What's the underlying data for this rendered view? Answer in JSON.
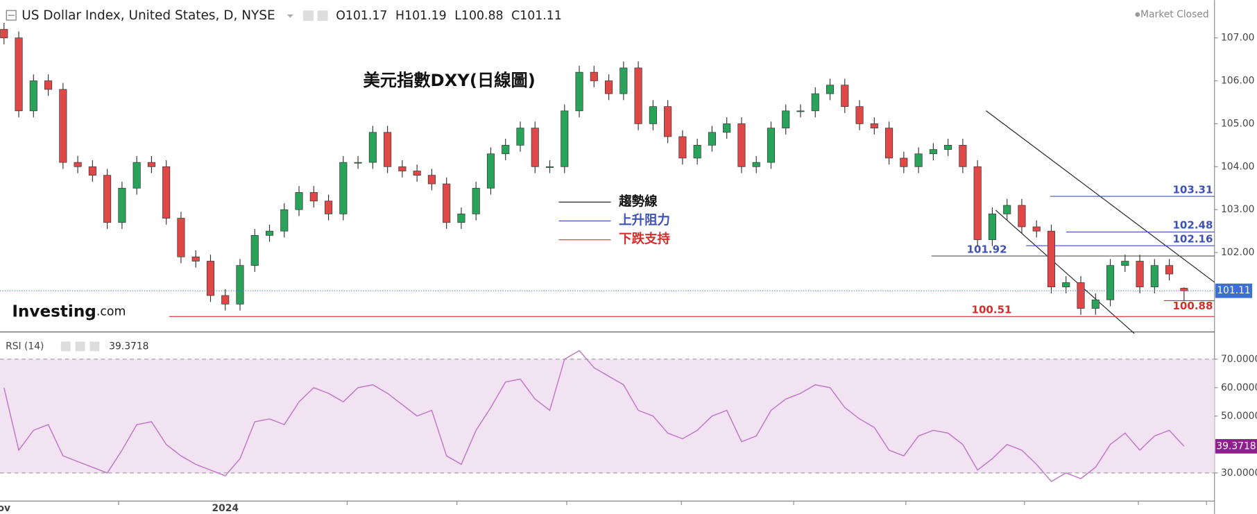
{
  "chart_data": [
    {
      "type": "candlestick",
      "title": "US Dollar Index, United States, D, NYSE",
      "ohlc_letters": [
        "O",
        "H",
        "L",
        "C"
      ],
      "status": "Market Closed",
      "logo": [
        "Investing",
        ".com"
      ],
      "annotation_title": "美元指數DXY(日線圖)",
      "annotation_legend": [
        {
          "label": "趨勢線",
          "color": "#111111"
        },
        {
          "label": "上升阻力",
          "color": "#3f51b5"
        },
        {
          "label": "下跌支持",
          "color": "#d32f2f"
        }
      ],
      "categories": [
        "ov",
        null,
        null,
        null,
        null,
        null,
        null,
        null,
        null,
        null,
        null,
        null,
        null,
        null,
        null,
        "2024",
        null,
        null,
        null,
        null,
        null,
        null,
        null,
        null,
        null,
        null,
        null,
        null,
        null,
        null,
        null,
        null,
        null,
        null,
        null,
        null,
        null,
        null,
        null,
        null,
        null,
        null,
        null,
        null,
        null,
        null,
        null,
        null,
        null,
        null,
        null,
        null,
        null,
        null,
        null,
        null,
        null,
        null,
        null,
        null,
        null,
        null,
        null,
        null,
        null,
        null,
        null,
        null,
        null,
        null,
        null,
        null,
        null,
        null,
        null,
        null,
        null,
        null,
        null,
        null,
        null
      ],
      "open": [
        107.2,
        107.0,
        105.3,
        106.0,
        105.8,
        104.1,
        104.0,
        103.8,
        102.7,
        103.5,
        104.1,
        104.0,
        102.8,
        101.9,
        101.8,
        101.0,
        100.8,
        101.7,
        102.4,
        102.5,
        103.0,
        103.4,
        103.2,
        102.9,
        104.1,
        104.1,
        104.8,
        104.0,
        103.9,
        103.8,
        103.6,
        102.7,
        102.9,
        103.5,
        104.3,
        104.5,
        104.9,
        104.0,
        104.0,
        105.3,
        106.2,
        106.0,
        105.7,
        106.3,
        105.0,
        105.4,
        104.7,
        104.2,
        104.5,
        104.8,
        105.0,
        104.0,
        104.1,
        104.9,
        105.3,
        105.3,
        105.7,
        105.9,
        105.4,
        105.0,
        104.9,
        104.2,
        104.0,
        104.3,
        104.4,
        104.5,
        104.0,
        102.3,
        102.9,
        103.1,
        102.6,
        102.5,
        101.2,
        101.3,
        100.7,
        100.9,
        101.7,
        101.8,
        101.2,
        101.7,
        101.17
      ],
      "high": [
        107.35,
        107.15,
        106.15,
        106.15,
        105.95,
        104.25,
        104.15,
        103.95,
        103.65,
        104.25,
        104.25,
        104.15,
        102.95,
        102.05,
        101.95,
        101.15,
        101.85,
        102.55,
        102.65,
        103.15,
        103.55,
        103.55,
        103.35,
        104.25,
        104.25,
        104.95,
        104.95,
        104.15,
        104.05,
        103.95,
        103.75,
        103.05,
        103.65,
        104.45,
        104.65,
        105.05,
        105.05,
        104.15,
        105.45,
        106.35,
        106.35,
        106.15,
        106.45,
        106.45,
        105.55,
        105.55,
        104.85,
        104.65,
        104.95,
        105.15,
        105.15,
        104.25,
        105.05,
        105.45,
        105.45,
        105.85,
        106.05,
        106.05,
        105.55,
        105.15,
        105.05,
        104.35,
        104.45,
        104.55,
        104.65,
        104.65,
        104.15,
        103.05,
        103.25,
        103.25,
        102.75,
        102.65,
        101.45,
        101.45,
        101.05,
        101.85,
        101.95,
        101.95,
        101.85,
        101.85,
        101.19
      ],
      "low": [
        106.85,
        105.15,
        105.15,
        105.65,
        103.95,
        103.85,
        103.65,
        102.55,
        102.55,
        103.35,
        103.85,
        102.65,
        101.75,
        101.65,
        100.85,
        100.65,
        100.65,
        101.55,
        102.25,
        102.35,
        102.85,
        103.05,
        102.75,
        102.75,
        103.95,
        103.95,
        103.85,
        103.75,
        103.65,
        103.45,
        102.55,
        102.55,
        102.75,
        103.35,
        104.15,
        104.35,
        103.85,
        103.85,
        103.85,
        105.15,
        105.85,
        105.55,
        105.55,
        104.85,
        104.85,
        104.55,
        104.05,
        104.05,
        104.35,
        104.65,
        103.85,
        103.85,
        103.95,
        104.75,
        105.15,
        105.15,
        105.55,
        105.25,
        104.85,
        104.75,
        104.05,
        103.85,
        103.85,
        104.15,
        104.25,
        103.85,
        102.15,
        102.15,
        102.75,
        102.45,
        102.35,
        101.05,
        101.05,
        100.55,
        100.55,
        100.75,
        101.55,
        101.05,
        101.05,
        101.35,
        100.88
      ],
      "close": [
        107.0,
        105.3,
        106.0,
        105.8,
        104.1,
        104.0,
        103.8,
        102.7,
        103.5,
        104.1,
        104.0,
        102.8,
        101.9,
        101.8,
        101.0,
        100.8,
        101.7,
        102.4,
        102.5,
        103.0,
        103.4,
        103.2,
        102.9,
        104.1,
        104.1,
        104.8,
        104.0,
        103.9,
        103.8,
        103.6,
        102.7,
        102.9,
        103.5,
        104.3,
        104.5,
        104.9,
        104.0,
        104.0,
        105.3,
        106.2,
        106.0,
        105.7,
        106.3,
        105.0,
        105.4,
        104.7,
        104.2,
        104.5,
        104.8,
        105.0,
        104.0,
        104.1,
        104.9,
        105.3,
        105.3,
        105.7,
        105.9,
        105.4,
        105.0,
        104.9,
        104.2,
        104.0,
        104.3,
        104.4,
        104.5,
        104.0,
        102.3,
        102.9,
        103.1,
        102.6,
        102.5,
        101.2,
        101.3,
        100.7,
        100.9,
        101.7,
        101.8,
        101.2,
        101.7,
        101.5,
        101.11
      ],
      "up_color": "#2aa35a",
      "down_color": "#e04848",
      "last_price_color": "#3d6fd1",
      "levels": [
        103.31,
        102.48,
        102.16,
        101.92,
        100.51,
        100.88
      ],
      "level_colors": [
        "#3f51b5",
        "#3f51b5",
        "#3f51b5",
        "#3f51b5",
        "#d32f2f",
        "#d32f2f"
      ],
      "ylim": [
        100.17,
        107.88
      ],
      "yticks": [
        {
          "value": 102,
          "label": "102.00"
        },
        {
          "value": 103,
          "label": "103.00"
        },
        {
          "value": 104,
          "label": "104.00"
        },
        {
          "value": 105,
          "label": "105.00"
        },
        {
          "value": 106,
          "label": "106.00"
        },
        {
          "value": 107,
          "label": "107.00"
        }
      ]
    },
    {
      "type": "line",
      "title": "RSI (14)",
      "series": [
        {
          "name": "RSI (14)",
          "color": "#c07ac8",
          "values": [
            60,
            38,
            45,
            47,
            36,
            34,
            32,
            30,
            38,
            47,
            48,
            40,
            36,
            33,
            31,
            29,
            35,
            48,
            49,
            47,
            55,
            60,
            58,
            55,
            60,
            61,
            58,
            54,
            50,
            52,
            36,
            33,
            45,
            53,
            62,
            63,
            56,
            52,
            70,
            73,
            67,
            64,
            61,
            52,
            50,
            44,
            42,
            45,
            50,
            52,
            41,
            43,
            52,
            56,
            58,
            61,
            60,
            53,
            49,
            46,
            38,
            36,
            43,
            45,
            44,
            40,
            31,
            35,
            40,
            38,
            33,
            27,
            30,
            28,
            32,
            40,
            44,
            38,
            43,
            45,
            39.3718
          ]
        }
      ],
      "band": [
        30,
        70
      ],
      "band_color": "#f1e3f1",
      "tag_color": "#8e1f8e",
      "ylim": [
        20.1,
        79.3
      ],
      "yticks": [
        {
          "value": 30,
          "label": "30.0000"
        },
        {
          "value": 50,
          "label": "50.0000"
        },
        {
          "value": 60,
          "label": "60.0000"
        },
        {
          "value": 70,
          "label": "70.0000"
        }
      ]
    }
  ]
}
